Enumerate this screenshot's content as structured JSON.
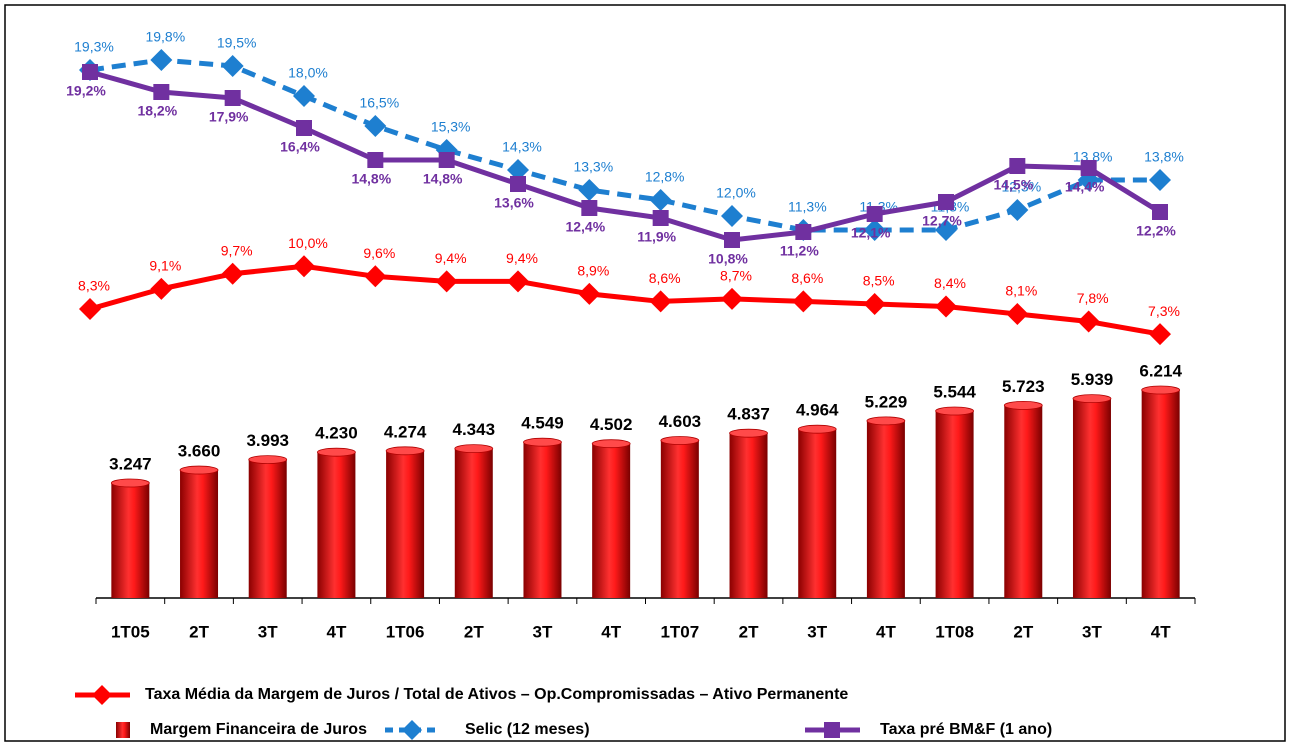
{
  "chart_data": {
    "type": "combo",
    "categories": [
      "1T05",
      "2T",
      "3T",
      "4T",
      "1T06",
      "2T",
      "3T",
      "4T",
      "1T07",
      "2T",
      "3T",
      "4T",
      "1T08",
      "2T",
      "3T",
      "4T"
    ],
    "ylim": [
      -422,
      17700
    ],
    "series": [
      {
        "name": "Taxa Média da Margem de Juros / Total de Ativos – Op.Compromissadas – Ativo Permanente",
        "type": "line",
        "marker": "diamond",
        "color": "#ff0000",
        "ylim": [
          -3.2,
          19.4
        ],
        "values": [
          8.3,
          9.1,
          9.7,
          10.0,
          9.6,
          9.4,
          9.4,
          8.9,
          8.6,
          8.7,
          8.6,
          8.5,
          8.4,
          8.1,
          7.8,
          7.3
        ],
        "value_labels": [
          "8,3%",
          "9,1%",
          "9,7%",
          "10,0%",
          "9,6%",
          "9,4%",
          "9,4%",
          "8,9%",
          "8,6%",
          "8,7%",
          "8,6%",
          "8,5%",
          "8,4%",
          "8,1%",
          "7,8%",
          "7,3%"
        ]
      },
      {
        "name": "Margem Financeira de Juros",
        "type": "bar",
        "color": "#ff0000",
        "values": [
          3247,
          3660,
          3993,
          4230,
          4274,
          4343,
          4549,
          4502,
          4603,
          4837,
          4964,
          5229,
          5544,
          5723,
          5939,
          6214
        ],
        "value_labels": [
          "3.247",
          "3.660",
          "3.993",
          "4.230",
          "4.274",
          "4.343",
          "4.549",
          "4.502",
          "4.603",
          "4.837",
          "4.964",
          "5.229",
          "5.544",
          "5.723",
          "5.939",
          "6.214"
        ]
      },
      {
        "name": "Selic (12 meses)",
        "type": "line",
        "marker": "diamond",
        "dashed": true,
        "color": "#1e7fd0",
        "ylim": [
          -7.1,
          21.3
        ],
        "values": [
          19.3,
          19.8,
          19.5,
          18.0,
          16.5,
          15.3,
          14.3,
          13.3,
          12.8,
          12.0,
          11.3,
          11.3,
          11.3,
          12.3,
          13.8,
          13.8
        ],
        "value_labels": [
          "19,3%",
          "19,8%",
          "19,5%",
          "18,0%",
          "16,5%",
          "15,3%",
          "14,3%",
          "13,3%",
          "12,8%",
          "12,0%",
          "11,3%",
          "11,3%",
          "11,3%",
          "12,3%",
          "13,8%",
          "13,8%"
        ]
      },
      {
        "name": "Taxa pré BM&F (1 ano)",
        "type": "line",
        "marker": "square",
        "color": "#7030a0",
        "ylim": [
          -7.1,
          21.3
        ],
        "values": [
          19.2,
          18.2,
          17.9,
          16.4,
          14.8,
          14.8,
          13.6,
          12.4,
          11.9,
          10.8,
          11.2,
          12.1,
          12.7,
          14.5,
          14.4,
          12.2
        ],
        "value_labels": [
          "19,2%",
          "18,2%",
          "17,9%",
          "16,4%",
          "14,8%",
          "14,8%",
          "13,6%",
          "12,4%",
          "11,9%",
          "10,8%",
          "11,2%",
          "12,1%",
          "12,7%",
          "14,5%",
          "14,4%",
          "12,2%"
        ]
      }
    ]
  }
}
